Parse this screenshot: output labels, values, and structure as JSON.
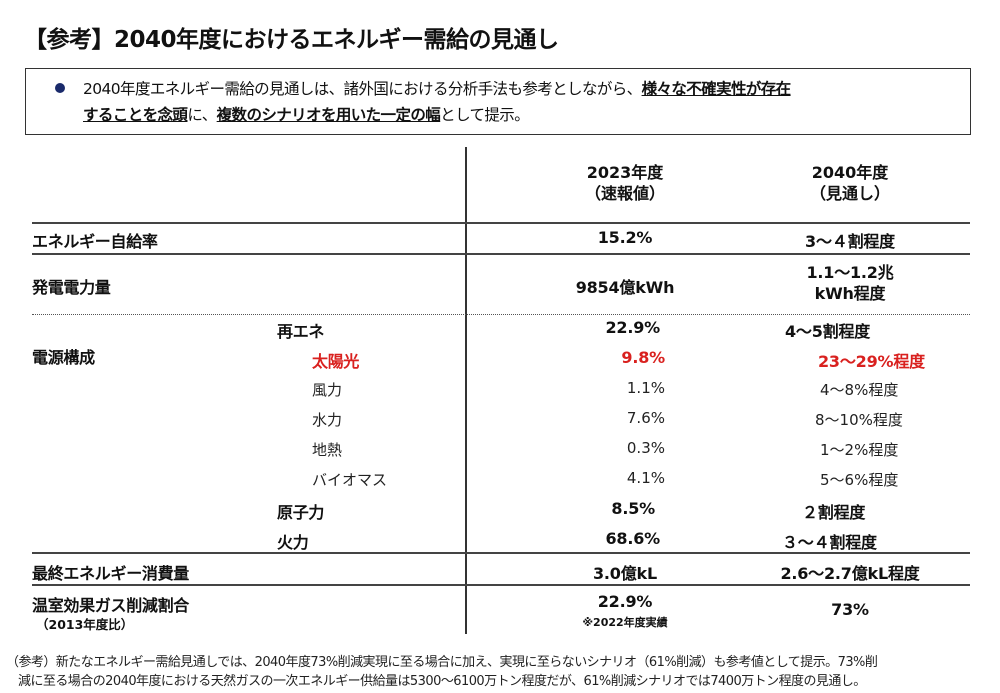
{
  "title": "【参考】2040年度におけるエネルギー需給の見通し",
  "summary": {
    "line1_plain": "2040年度エネルギー需給の見通しは、諸外国における分析手法も参考としながら、",
    "line1_bold": "様々な不確実性が存在",
    "line2_bold1": "することを念頭",
    "line2_plain1": "に、",
    "line2_bold2": "複数のシナリオを用いた一定の幅",
    "line2_plain2": "として提示。"
  },
  "table": {
    "headers": {
      "col1_line1": "2023年度",
      "col1_line2": "（速報値）",
      "col2_line1": "2040年度",
      "col2_line2": "（見通し）"
    },
    "self_sufficiency": {
      "label": "エネルギー自給率",
      "v2023": "15.2%",
      "v2040": "3～４割程度"
    },
    "generation": {
      "label": "発電電力量",
      "v2023": "9854億kWh",
      "v2040_line1": "1.1～1.2兆",
      "v2040_line2": "kWh程度"
    },
    "power_mix": {
      "label": "電源構成",
      "renewables": {
        "label": "再エネ",
        "v2023": "22.9%",
        "v2040": "4～5割程度"
      },
      "solar": {
        "label": "太陽光",
        "v2023": "9.8%",
        "v2040": "23～29%程度"
      },
      "wind": {
        "label": "風力",
        "v2023": "1.1%",
        "v2040": "4～8%程度"
      },
      "hydro": {
        "label": "水力",
        "v2023": "7.6%",
        "v2040": "8～10%程度"
      },
      "geothermal": {
        "label": "地熱",
        "v2023": "0.3%",
        "v2040": "1～2%程度"
      },
      "biomass": {
        "label": "バイオマス",
        "v2023": "4.1%",
        "v2040": "5～6%程度"
      },
      "nuclear": {
        "label": "原子力",
        "v2023": "8.5%",
        "v2040": "２割程度"
      },
      "thermal": {
        "label": "火力",
        "v2023": "68.6%",
        "v2040": "３～４割程度"
      }
    },
    "final_consumption": {
      "label": "最終エネルギー消費量",
      "v2023": "3.0億kL",
      "v2040": "2.6～2.7億kL程度"
    },
    "ghg_reduction": {
      "label": "温室効果ガス削減割合",
      "sublabel": "（2013年度比）",
      "v2023": "22.9%",
      "v2023_note": "※2022年度実績",
      "v2040": "73%"
    }
  },
  "footnote": {
    "line1": "（参考）新たなエネルギー需給見通しでは、2040年度73%削減実現に至る場合に加え、実現に至らないシナリオ（61%削減）も参考値として提示。73%削",
    "line2": "減に至る場合の2040年度における天然ガスの一次エネルギー供給量は5300～6100万トン程度だが、61%削減シナリオでは7400万トン程度の見通し。"
  },
  "colors": {
    "accent_red": "#d9211f",
    "bullet_navy": "#1a2a6b",
    "rule": "#444444"
  }
}
